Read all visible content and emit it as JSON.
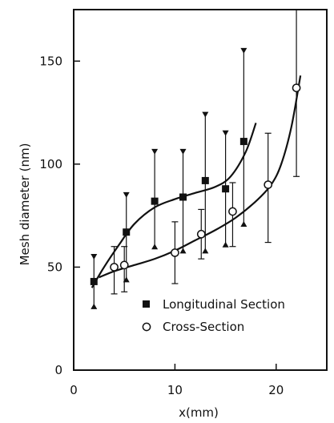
{
  "chart_data": {
    "type": "scatter",
    "title": "",
    "xlabel": "x(mm)",
    "ylabel": "Mesh diameter (nm)",
    "xlim": [
      0,
      25
    ],
    "ylim": [
      0,
      175
    ],
    "x_ticks": [
      0,
      10,
      20
    ],
    "y_ticks": [
      0,
      50,
      100,
      150
    ],
    "x_tick_labels": [
      "0",
      "10",
      "20"
    ],
    "y_tick_labels": [
      "0",
      "50",
      "100",
      "150"
    ],
    "grid": false,
    "legend_position": "lower-right",
    "series": [
      {
        "name": "Longitudinal Section",
        "marker": "filled-square",
        "x": [
          2.0,
          5.2,
          8.0,
          10.8,
          13.0,
          15.0,
          16.8
        ],
        "y": [
          43,
          67,
          82,
          84,
          92,
          88,
          111
        ],
        "y_low": [
          30,
          43,
          59,
          57,
          57,
          60,
          70
        ],
        "y_high": [
          56,
          86,
          107,
          107,
          125,
          116,
          156
        ],
        "fit_curve": {
          "x": [
            1.8,
            3,
            4.5,
            6,
            8,
            10,
            12,
            14,
            15.5,
            17,
            18
          ],
          "y": [
            40,
            50,
            61,
            71,
            79,
            83,
            86,
            89,
            94,
            106,
            120
          ]
        }
      },
      {
        "name": "Cross-Section",
        "marker": "open-circle",
        "x": [
          4.0,
          5.0,
          10.0,
          12.6,
          15.7,
          19.2,
          22.0
        ],
        "y": [
          50,
          51,
          57,
          66,
          77,
          90,
          137
        ],
        "y_low": [
          37,
          38,
          42,
          54,
          60,
          62,
          94
        ],
        "y_high": [
          60,
          60,
          72,
          78,
          91,
          115,
          175
        ],
        "fit_curve": {
          "x": [
            2.5,
            4,
            6,
            8,
            10,
            12,
            14,
            16,
            18,
            19.5,
            20.5,
            21.5,
            22.4
          ],
          "y": [
            45,
            48,
            51,
            54,
            58,
            63,
            68,
            74,
            82,
            90,
            100,
            118,
            143
          ]
        }
      }
    ]
  },
  "legend": {
    "items": [
      {
        "label": "Longitudinal Section",
        "marker": "filled-square"
      },
      {
        "label": "Cross-Section",
        "marker": "open-circle"
      }
    ]
  }
}
